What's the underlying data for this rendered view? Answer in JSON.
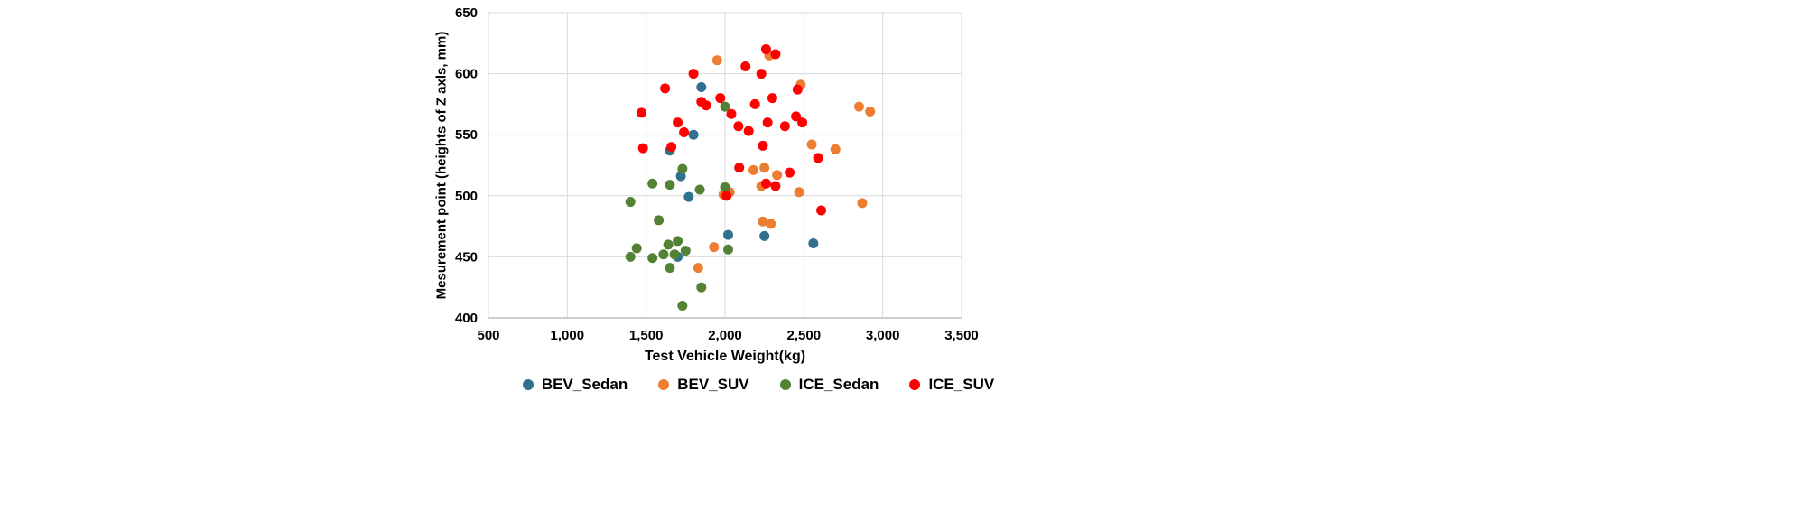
{
  "chart_data": {
    "type": "scatter",
    "title": "",
    "xlabel": "Test Vehicle Weight(kg)",
    "ylabel": "Mesurement point (heights of Z axls, mm)",
    "xlim": [
      500,
      3500
    ],
    "ylim": [
      400,
      650
    ],
    "grid": true,
    "legend_position": "bottom",
    "x_ticks": [
      {
        "value": 500,
        "label": "500"
      },
      {
        "value": 1000,
        "label": "1,000"
      },
      {
        "value": 1500,
        "label": "1,500"
      },
      {
        "value": 2000,
        "label": "2,000"
      },
      {
        "value": 2500,
        "label": "2,500"
      },
      {
        "value": 3000,
        "label": "3,000"
      },
      {
        "value": 3500,
        "label": "3,500"
      }
    ],
    "y_ticks": [
      {
        "value": 400,
        "label": "400"
      },
      {
        "value": 450,
        "label": "450"
      },
      {
        "value": 500,
        "label": "500"
      },
      {
        "value": 550,
        "label": "550"
      },
      {
        "value": 600,
        "label": "600"
      },
      {
        "value": 650,
        "label": "650"
      }
    ],
    "series": [
      {
        "name": "BEV_Sedan",
        "color": "#31708E",
        "points": [
          [
            1850,
            589
          ],
          [
            1800,
            550
          ],
          [
            1650,
            537
          ],
          [
            1720,
            516
          ],
          [
            1770,
            499
          ],
          [
            2020,
            468
          ],
          [
            2250,
            467
          ],
          [
            2560,
            461
          ],
          [
            1700,
            450
          ]
        ]
      },
      {
        "name": "BEV_SUV",
        "color": "#ED7D31",
        "points": [
          [
            1950,
            611
          ],
          [
            2280,
            615
          ],
          [
            2480,
            591
          ],
          [
            2850,
            573
          ],
          [
            2920,
            569
          ],
          [
            2550,
            542
          ],
          [
            2700,
            538
          ],
          [
            2250,
            523
          ],
          [
            2180,
            521
          ],
          [
            2330,
            517
          ],
          [
            2230,
            508
          ],
          [
            2470,
            503
          ],
          [
            2030,
            503
          ],
          [
            1990,
            501
          ],
          [
            2870,
            494
          ],
          [
            2240,
            479
          ],
          [
            2290,
            477
          ],
          [
            1930,
            458
          ],
          [
            1830,
            441
          ]
        ]
      },
      {
        "name": "ICE_Sedan",
        "color": "#548235",
        "points": [
          [
            2000,
            573
          ],
          [
            1730,
            522
          ],
          [
            1540,
            510
          ],
          [
            1650,
            509
          ],
          [
            2000,
            507
          ],
          [
            1840,
            505
          ],
          [
            1400,
            495
          ],
          [
            1580,
            480
          ],
          [
            1640,
            460
          ],
          [
            1440,
            457
          ],
          [
            1700,
            463
          ],
          [
            1750,
            455
          ],
          [
            2020,
            456
          ],
          [
            1400,
            450
          ],
          [
            1540,
            449
          ],
          [
            1680,
            452
          ],
          [
            1610,
            452
          ],
          [
            1650,
            441
          ],
          [
            1850,
            425
          ],
          [
            1730,
            410
          ]
        ]
      },
      {
        "name": "ICE_SUV",
        "color": "#FF0000",
        "points": [
          [
            2260,
            620
          ],
          [
            2320,
            616
          ],
          [
            2130,
            606
          ],
          [
            2230,
            600
          ],
          [
            1800,
            600
          ],
          [
            2460,
            587
          ],
          [
            1620,
            588
          ],
          [
            1470,
            568
          ],
          [
            1850,
            577
          ],
          [
            1880,
            574
          ],
          [
            1970,
            580
          ],
          [
            2300,
            580
          ],
          [
            2190,
            575
          ],
          [
            2040,
            567
          ],
          [
            2085,
            557
          ],
          [
            2150,
            553
          ],
          [
            2270,
            560
          ],
          [
            2380,
            557
          ],
          [
            2450,
            565
          ],
          [
            2490,
            560
          ],
          [
            1700,
            560
          ],
          [
            1740,
            552
          ],
          [
            1480,
            539
          ],
          [
            1660,
            540
          ],
          [
            2240,
            541
          ],
          [
            2590,
            531
          ],
          [
            2090,
            523
          ],
          [
            2410,
            519
          ],
          [
            2260,
            510
          ],
          [
            2320,
            508
          ],
          [
            2010,
            500
          ],
          [
            2610,
            488
          ]
        ]
      }
    ]
  }
}
